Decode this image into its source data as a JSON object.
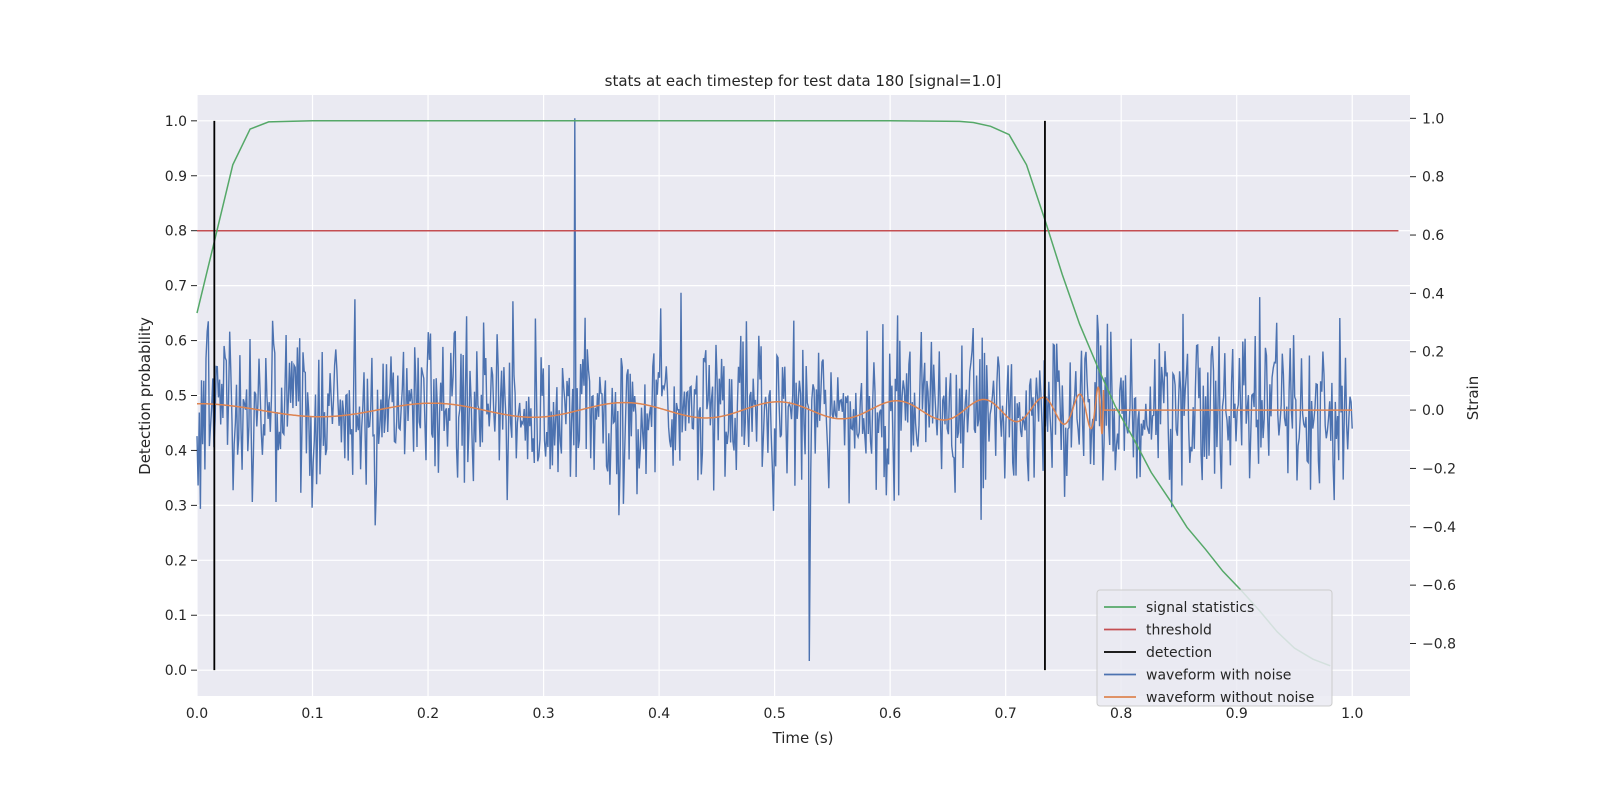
{
  "chart_data": {
    "type": "line",
    "title": "stats at each timestep for test data 180 [signal=1.0]",
    "xlabel": "Time (s)",
    "ylabel": "Detection probability",
    "y2label": "Strain",
    "xlim": [
      0.0,
      1.05
    ],
    "ylim": [
      -0.047,
      1.047
    ],
    "y2lim": [
      -0.98,
      1.08
    ],
    "xticks": [
      "0.0",
      "0.1",
      "0.2",
      "0.3",
      "0.4",
      "0.5",
      "0.6",
      "0.7",
      "0.8",
      "0.9",
      "1.0"
    ],
    "yticks": [
      "0.0",
      "0.1",
      "0.2",
      "0.3",
      "0.4",
      "0.5",
      "0.6",
      "0.7",
      "0.8",
      "0.9",
      "1.0"
    ],
    "y2ticks": [
      "−0.8",
      "−0.6",
      "−0.4",
      "−0.2",
      "0.0",
      "0.2",
      "0.4",
      "0.6",
      "0.8",
      "1.0"
    ],
    "grid": true,
    "legend_position": "lower-right",
    "colors": {
      "signal_statistics": "#55a868",
      "threshold": "#c44e52",
      "detection": "#000000",
      "waveform_with_noise": "#4c72b0",
      "waveform_without_noise": "#dd8452",
      "background": "#eaeaf2",
      "grid": "#ffffff"
    },
    "series": [
      {
        "name": "signal statistics",
        "axis": "left",
        "x": [
          0.0,
          0.015,
          0.031,
          0.046,
          0.062,
          0.1,
          0.2,
          0.3,
          0.4,
          0.5,
          0.6,
          0.66,
          0.672,
          0.687,
          0.703,
          0.718,
          0.734,
          0.749,
          0.764,
          0.78,
          0.795,
          0.811,
          0.826,
          0.842,
          0.857,
          0.873,
          0.888,
          0.904,
          0.919,
          0.935,
          0.95,
          0.966,
          0.981
        ],
        "y": [
          0.65,
          0.78,
          0.92,
          0.985,
          0.998,
          1.0,
          1.0,
          1.0,
          1.0,
          1.0,
          1.0,
          0.999,
          0.997,
          0.99,
          0.975,
          0.92,
          0.82,
          0.72,
          0.63,
          0.55,
          0.48,
          0.42,
          0.36,
          0.31,
          0.26,
          0.22,
          0.18,
          0.145,
          0.11,
          0.07,
          0.04,
          0.02,
          0.008
        ]
      },
      {
        "name": "threshold",
        "axis": "left",
        "x": [
          0.0,
          1.04
        ],
        "y": [
          0.8,
          0.8
        ]
      },
      {
        "name": "detection",
        "axis": "left",
        "type": "vlines",
        "x": [
          0.015,
          0.734
        ],
        "y": [
          0.0,
          1.0
        ]
      },
      {
        "name": "waveform with noise",
        "axis": "right",
        "generated": "random noise, amplitude about ±0.3 around 0, spikes up to 1.0 at t≈0.327 and down to −0.86 at t≈0.53",
        "x_range": [
          0.0,
          1.0
        ],
        "peaks": [
          {
            "x": 0.327,
            "y": 1.0
          },
          {
            "x": 0.53,
            "y": -0.86
          }
        ]
      },
      {
        "name": "waveform without noise",
        "axis": "right",
        "generated": "chirp with rising frequency and amplitude up to t≈0.785, then flat at 0",
        "x_range": [
          0.0,
          1.0
        ],
        "merger_time": 0.785
      }
    ]
  }
}
